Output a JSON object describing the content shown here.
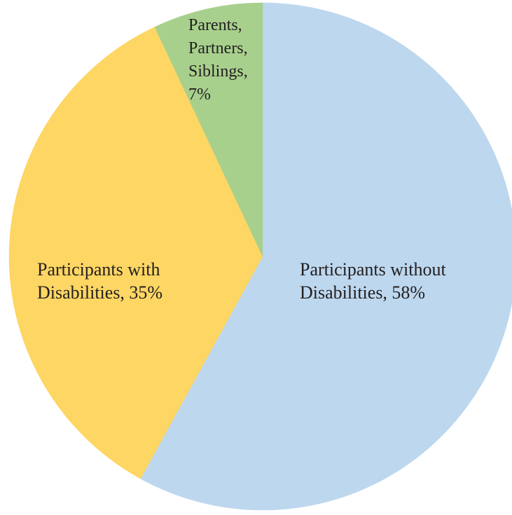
{
  "chart_data": {
    "type": "pie",
    "title": "",
    "start_angle_deg": 0,
    "direction": "clockwise",
    "slices": [
      {
        "label": "Participants without Disabilities",
        "value": 58,
        "display_lines": [
          "Participants without",
          "Disabilities, 58%"
        ],
        "color": "#bdd7ee"
      },
      {
        "label": "Participants with Disabilities",
        "value": 35,
        "display_lines": [
          "Participants with",
          "Disabilities, 35%"
        ],
        "color": "#fdd663"
      },
      {
        "label": "Parents, Partners, Siblings",
        "value": 7,
        "display_lines": [
          "Parents,",
          "Partners,",
          "Siblings,",
          "7%"
        ],
        "color": "#a8d08d"
      }
    ]
  }
}
